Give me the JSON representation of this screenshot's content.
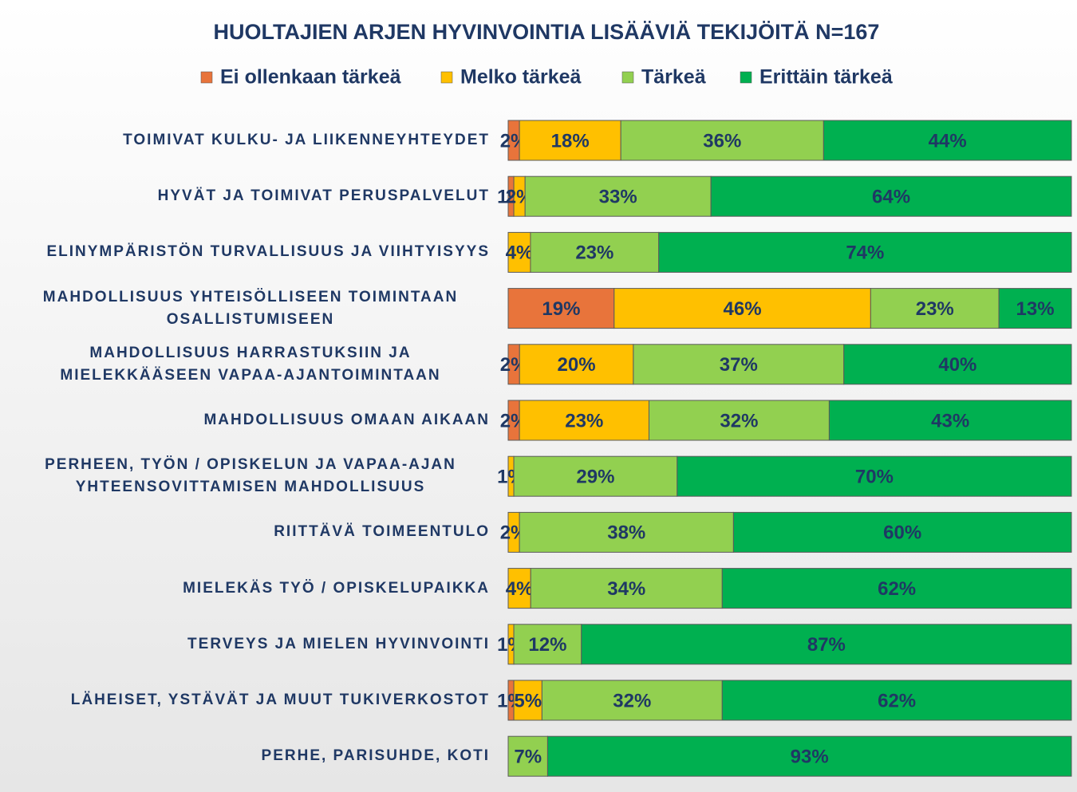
{
  "chart_data": {
    "type": "stacked-bar-100",
    "title": "HUOLTAJIEN ARJEN HYVINVOINTIA LISÄÄVIÄ TEKIJÖITÄ N=167",
    "categories": [
      "TOIMIVAT KULKU- JA LIIKENNEYHTEYDET",
      "HYVÄT JA TOIMIVAT PERUSPALVELUT",
      "ELINYMPÄRISTÖN TURVALLISUUS JA VIIHTYISYYS",
      "MAHDOLLISUUS YHTEISÖLLISEEN TOIMINTAAN OSALLISTUMISEEN",
      "MAHDOLLISUUS HARRASTUKSIIN JA MIELEKKÄÄSEEN VAPAA-AJANTOIMINTAAN",
      "MAHDOLLISUUS OMAAN AIKAAN",
      "PERHEEN, TYÖN / OPISKELUN JA VAPAA-AJAN YHTEENSOVITTAMISEN MAHDOLLISUUS",
      "RIITTÄVÄ TOIMEENTULO",
      "MIELEKÄS TYÖ / OPISKELUPAIKKA",
      "TERVEYS JA MIELEN HYVINVOINTI",
      "LÄHEISET, YSTÄVÄT JA MUUT TUKIVERKOSTOT",
      "PERHE, PARISUHDE, KOTI"
    ],
    "series": [
      {
        "name": "Ei ollenkaan tärkeä",
        "color": "#e8743b",
        "values": [
          2,
          1,
          null,
          19,
          2,
          2,
          null,
          null,
          null,
          null,
          1,
          null
        ],
        "value_labels": [
          "2%",
          "1%",
          null,
          "19%",
          "2%",
          "2%",
          null,
          null,
          null,
          null,
          "1%",
          null
        ]
      },
      {
        "name": "Melko tärkeä",
        "color": "#ffc000",
        "values": [
          18,
          2,
          4,
          46,
          20,
          23,
          1,
          2,
          4,
          1,
          5,
          null
        ],
        "value_labels": [
          "18%",
          "2%",
          "4%",
          "46%",
          "20%",
          "23%",
          "1%",
          "2%",
          "4%",
          "1%",
          "5%",
          null
        ]
      },
      {
        "name": "Tärkeä",
        "color": "#92d050",
        "values": [
          36,
          33,
          23,
          23,
          37,
          32,
          29,
          38,
          34,
          12,
          32,
          7
        ],
        "value_labels": [
          "36%",
          "33%",
          "23%",
          "23%",
          "37%",
          "32%",
          "29%",
          "38%",
          "34%",
          "12%",
          "32%",
          "7%"
        ]
      },
      {
        "name": "Erittäin tärkeä",
        "color": "#00b050",
        "values": [
          44,
          64,
          74,
          13,
          40,
          43,
          70,
          60,
          62,
          87,
          62,
          93
        ],
        "value_labels": [
          "44%",
          "64%",
          "74%",
          "13%",
          "40%",
          "43%",
          "70%",
          "60%",
          "62%",
          "87%",
          "62%",
          "93%"
        ]
      }
    ]
  }
}
